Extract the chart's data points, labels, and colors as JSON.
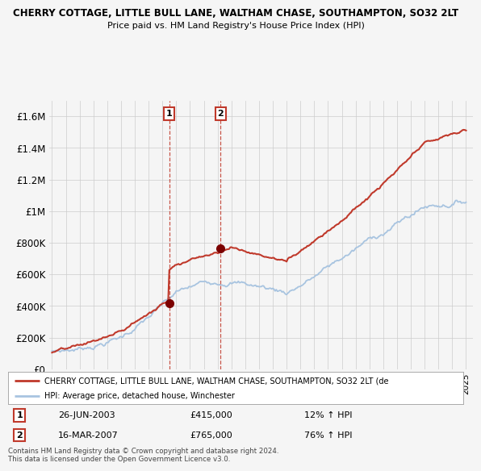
{
  "title": "CHERRY COTTAGE, LITTLE BULL LANE, WALTHAM CHASE, SOUTHAMPTON, SO32 2LT",
  "subtitle": "Price paid vs. HM Land Registry's House Price Index (HPI)",
  "hpi_label": "HPI: Average price, detached house, Winchester",
  "property_label": "CHERRY COTTAGE, LITTLE BULL LANE, WALTHAM CHASE, SOUTHAMPTON, SO32 2LT (de",
  "sale1_date": "26-JUN-2003",
  "sale1_price": 415000,
  "sale1_hpi": "12% ↑ HPI",
  "sale2_date": "16-MAR-2007",
  "sale2_price": 765000,
  "sale2_hpi": "76% ↑ HPI",
  "copyright": "Contains HM Land Registry data © Crown copyright and database right 2024.\nThis data is licensed under the Open Government Licence v3.0.",
  "hpi_color": "#a8c4e0",
  "property_color": "#c0392b",
  "sale_dot_color": "#7B0000",
  "vline_color": "#c0392b",
  "background_color": "#f5f5f5",
  "grid_color": "#cccccc",
  "ylim": [
    0,
    1700000
  ],
  "yticks": [
    0,
    200000,
    400000,
    600000,
    800000,
    1000000,
    1200000,
    1400000,
    1600000
  ],
  "ytick_labels": [
    "£0",
    "£200K",
    "£400K",
    "£600K",
    "£800K",
    "£1M",
    "£1.2M",
    "£1.4M",
    "£1.6M"
  ],
  "start_year": 1995,
  "end_year": 2025,
  "sale1_x": 2003.49,
  "sale2_x": 2007.21
}
